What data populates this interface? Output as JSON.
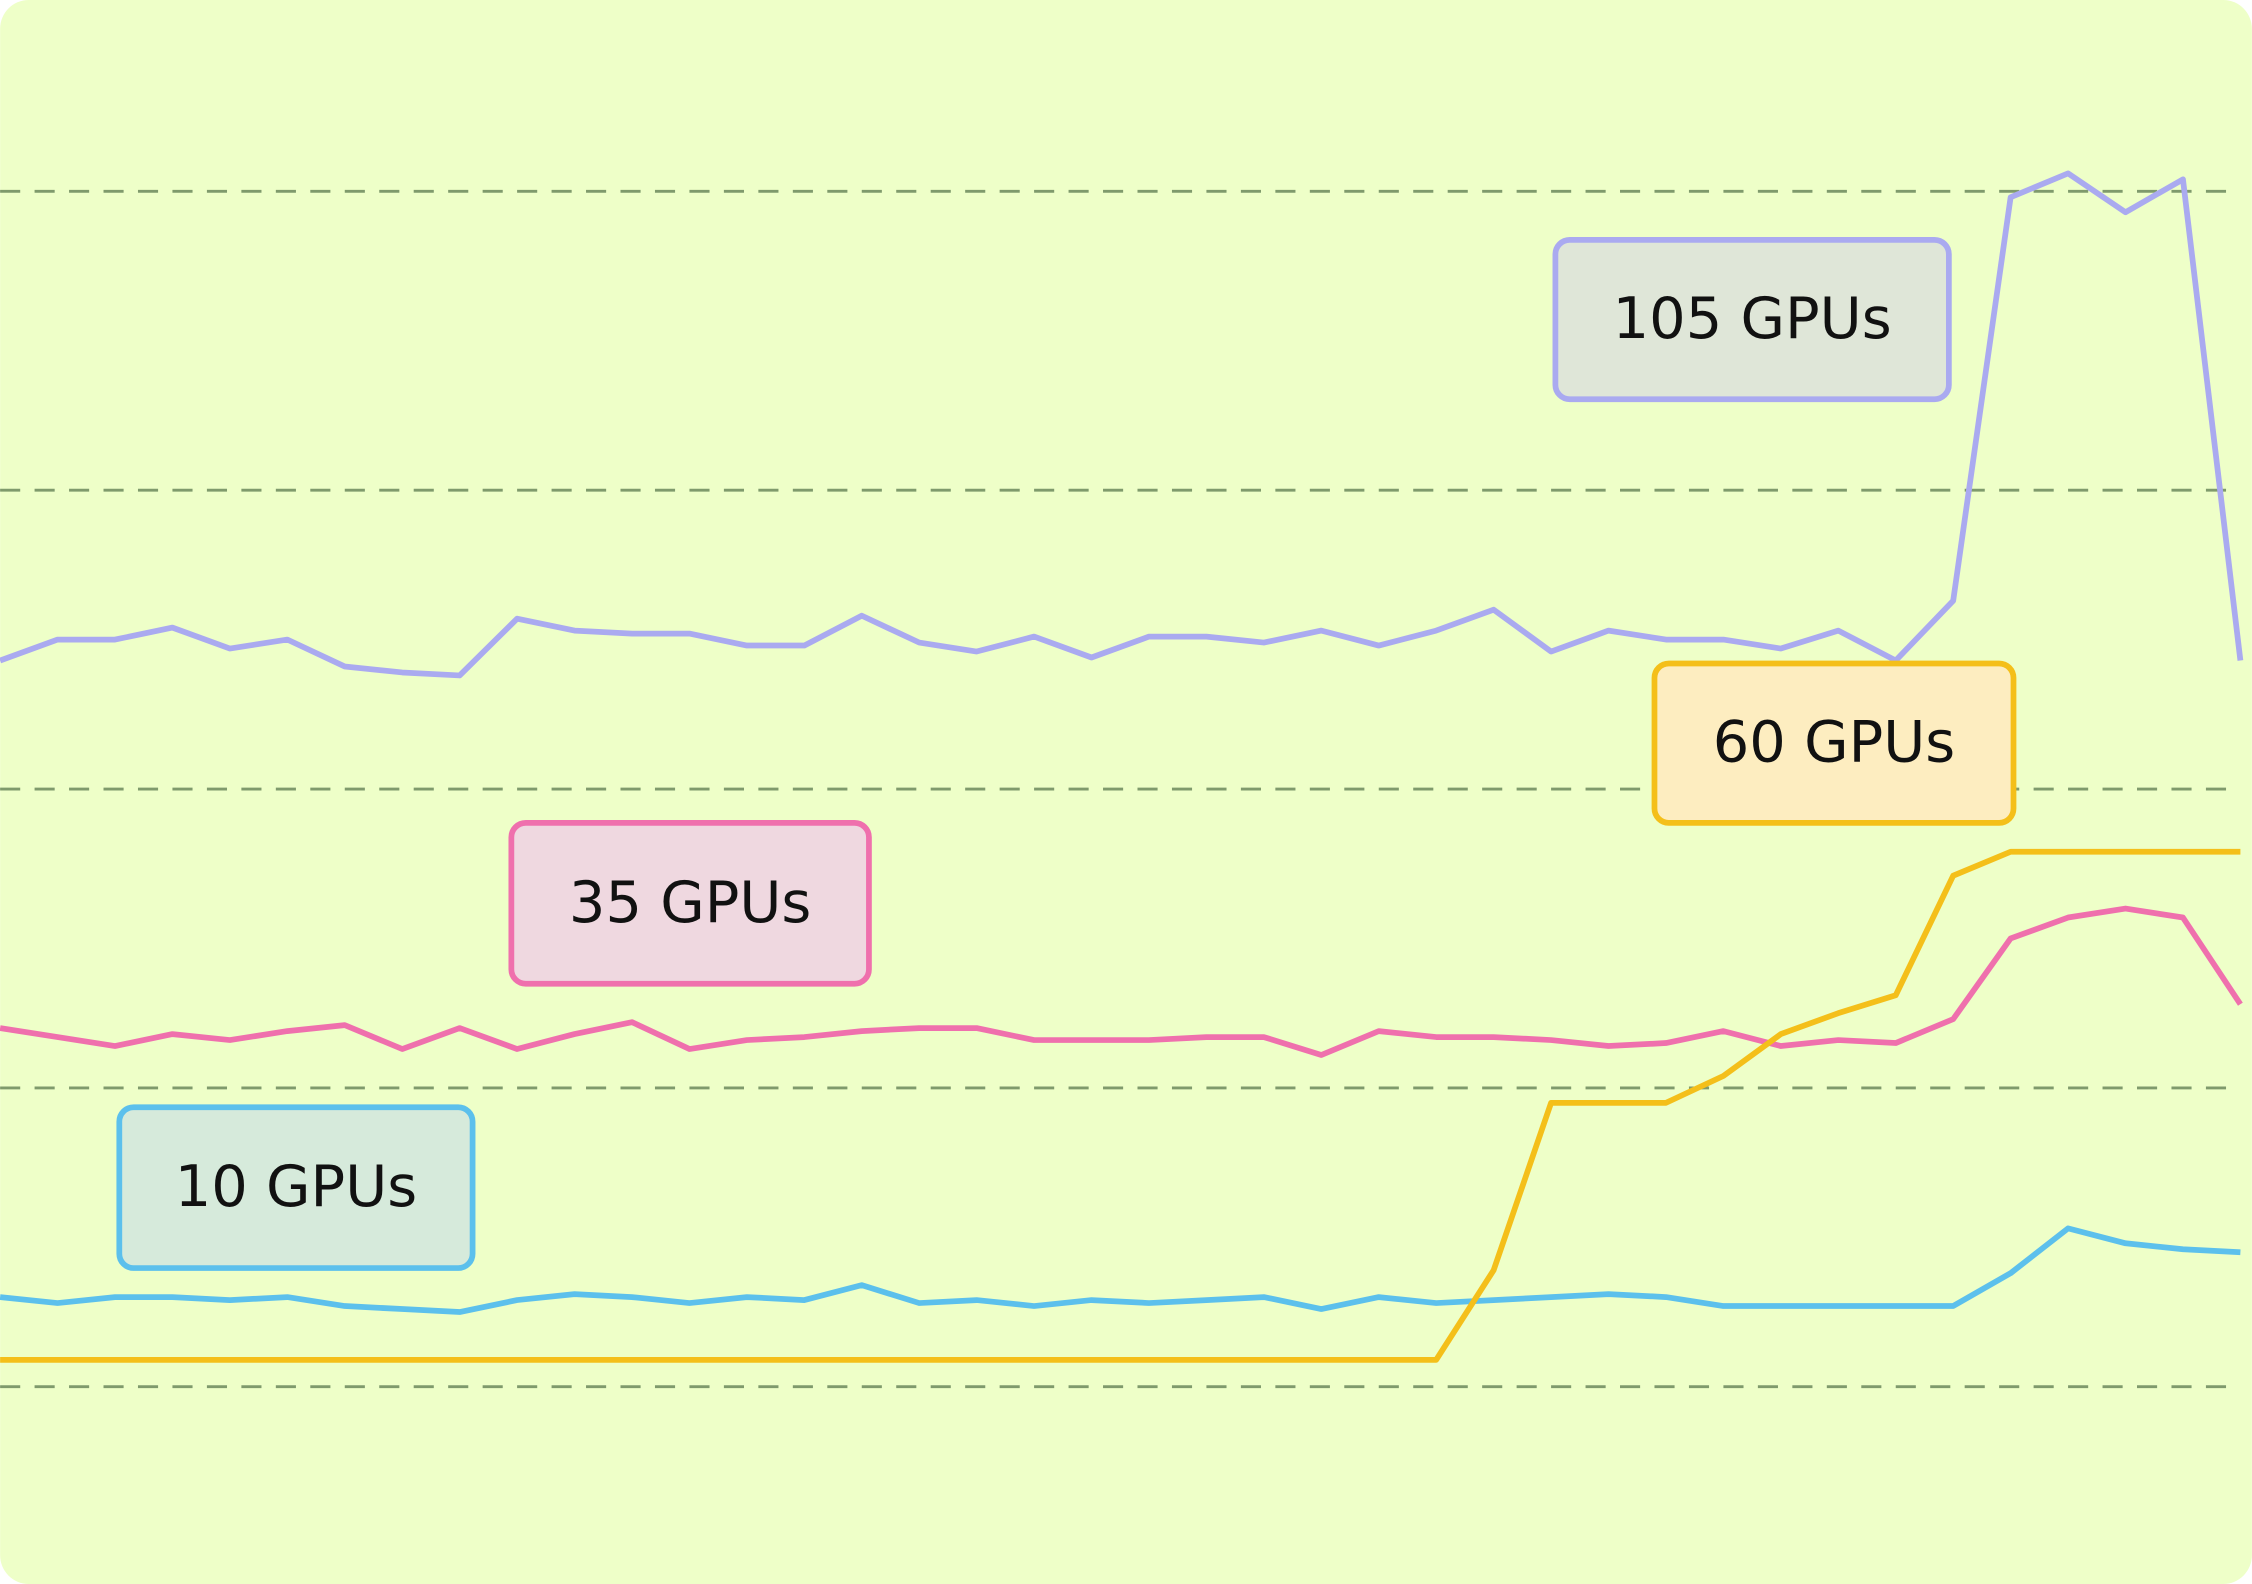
{
  "chart_data": {
    "type": "line",
    "x": [
      0,
      1,
      2,
      3,
      4,
      5,
      6,
      7,
      8,
      9,
      10,
      11,
      12,
      13,
      14,
      15,
      16,
      17,
      18,
      19,
      20,
      21,
      22,
      23,
      24,
      25,
      26,
      27,
      28,
      29,
      30,
      31,
      32,
      33,
      34,
      35,
      36,
      37,
      38,
      39
    ],
    "xlim": [
      0,
      39.2
    ],
    "ylim": [
      -0.66,
      4.64
    ],
    "yticks": [
      0,
      1,
      2,
      3,
      4
    ],
    "grid": true,
    "series": [
      {
        "name": "10 GPUs",
        "color": "#5cc0ec",
        "values": [
          0.3,
          0.28,
          0.3,
          0.3,
          0.29,
          0.3,
          0.27,
          0.26,
          0.25,
          0.29,
          0.31,
          0.3,
          0.28,
          0.3,
          0.29,
          0.34,
          0.28,
          0.29,
          0.27,
          0.29,
          0.28,
          0.29,
          0.3,
          0.26,
          0.3,
          0.28,
          0.29,
          0.3,
          0.31,
          0.3,
          0.27,
          0.27,
          0.27,
          0.27,
          0.27,
          0.38,
          0.53,
          0.48,
          0.46,
          0.45
        ]
      },
      {
        "name": "35 GPUs",
        "color": "#ef70ad",
        "values": [
          1.2,
          1.17,
          1.14,
          1.18,
          1.16,
          1.19,
          1.21,
          1.13,
          1.2,
          1.13,
          1.18,
          1.22,
          1.13,
          1.16,
          1.17,
          1.19,
          1.2,
          1.2,
          1.16,
          1.16,
          1.16,
          1.17,
          1.17,
          1.11,
          1.19,
          1.17,
          1.17,
          1.16,
          1.14,
          1.15,
          1.19,
          1.14,
          1.16,
          1.15,
          1.23,
          1.5,
          1.57,
          1.6,
          1.57,
          1.28
        ]
      },
      {
        "name": "60 GPUs",
        "color": "#f4bf1a",
        "values": [
          0.09,
          0.09,
          0.09,
          0.09,
          0.09,
          0.09,
          0.09,
          0.09,
          0.09,
          0.09,
          0.09,
          0.09,
          0.09,
          0.09,
          0.09,
          0.09,
          0.09,
          0.09,
          0.09,
          0.09,
          0.09,
          0.09,
          0.09,
          0.09,
          0.09,
          0.09,
          0.39,
          0.95,
          0.95,
          0.95,
          1.04,
          1.18,
          1.25,
          1.31,
          1.71,
          1.79,
          1.79,
          1.79,
          1.79,
          1.79
        ]
      },
      {
        "name": "105 GPUs",
        "color": "#aaaaf0",
        "values": [
          2.43,
          2.5,
          2.5,
          2.54,
          2.47,
          2.5,
          2.41,
          2.39,
          2.38,
          2.57,
          2.53,
          2.52,
          2.52,
          2.48,
          2.48,
          2.58,
          2.49,
          2.46,
          2.51,
          2.44,
          2.51,
          2.51,
          2.49,
          2.53,
          2.48,
          2.53,
          2.6,
          2.46,
          2.53,
          2.5,
          2.5,
          2.47,
          2.53,
          2.43,
          2.63,
          3.98,
          4.06,
          3.93,
          4.04,
          2.43
        ]
      }
    ]
  }
}
